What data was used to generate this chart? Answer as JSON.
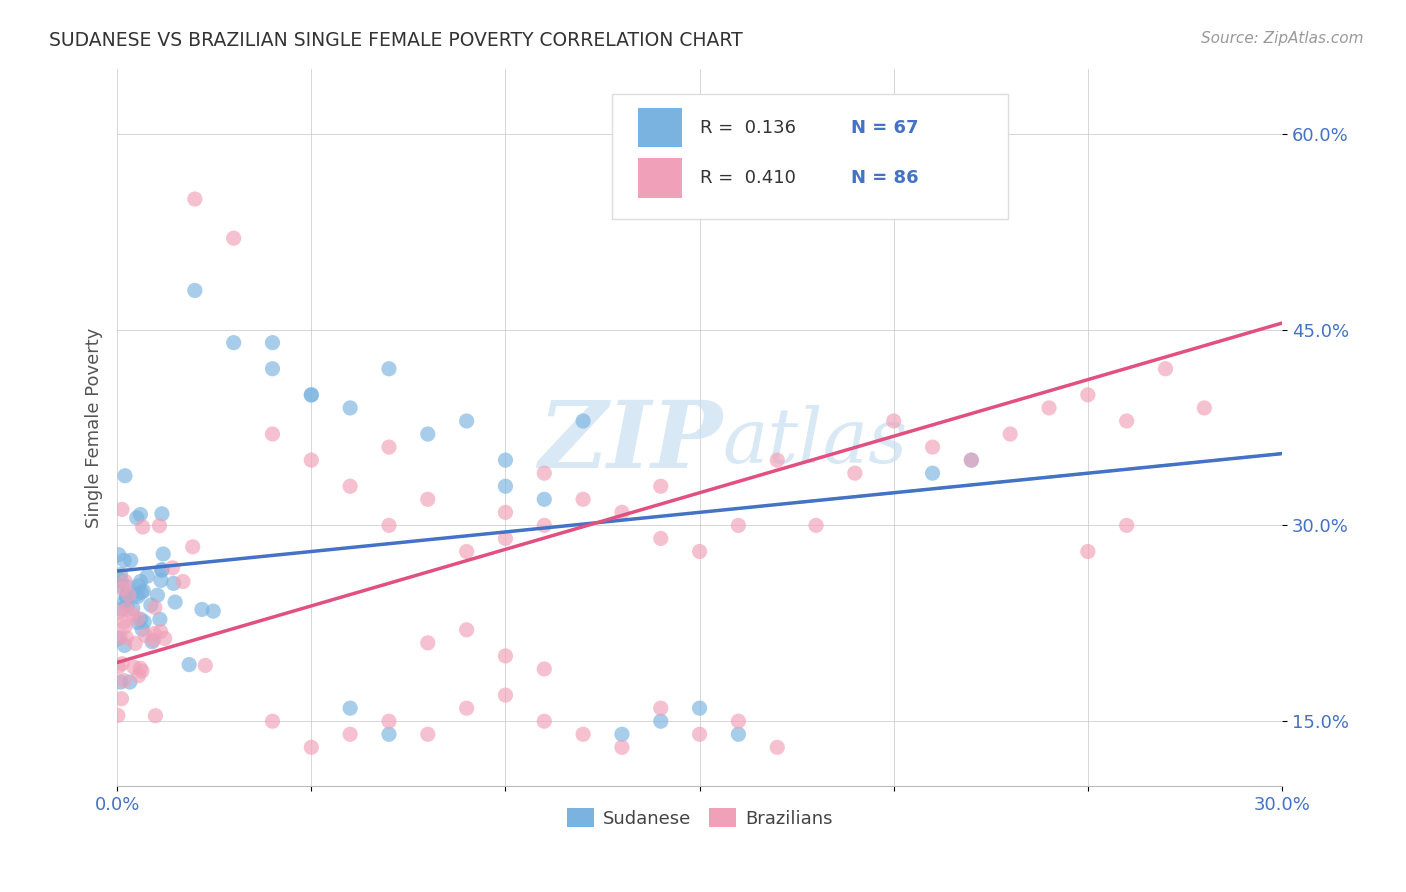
{
  "title": "SUDANESE VS BRAZILIAN SINGLE FEMALE POVERTY CORRELATION CHART",
  "source": "Source: ZipAtlas.com",
  "ylabel": "Single Female Poverty",
  "sudanese_color": "#7ab3e0",
  "brazilian_color": "#f0a0b8",
  "sudanese_line_color": "#4472c4",
  "brazilian_line_color": "#e05080",
  "dashed_line_color": "#90bcd8",
  "watermark_color": "#c8dff0",
  "xlim": [
    0.0,
    0.3
  ],
  "ylim": [
    0.1,
    0.65
  ],
  "x_tick_positions": [
    0.0,
    0.05,
    0.1,
    0.15,
    0.2,
    0.25,
    0.3
  ],
  "y_tick_positions": [
    0.15,
    0.3,
    0.45,
    0.6
  ],
  "sud_line_x0": 0.0,
  "sud_line_y0": 0.265,
  "sud_line_x1": 0.3,
  "sud_line_y1": 0.355,
  "bra_line_x0": 0.0,
  "bra_line_y0": 0.195,
  "bra_line_x1": 0.3,
  "bra_line_y1": 0.455,
  "dash_line_x0": 0.175,
  "dash_line_x1": 0.3,
  "legend_R1": "R =  0.136",
  "legend_N1": "N = 67",
  "legend_R2": "R =  0.410",
  "legend_N2": "N = 86"
}
